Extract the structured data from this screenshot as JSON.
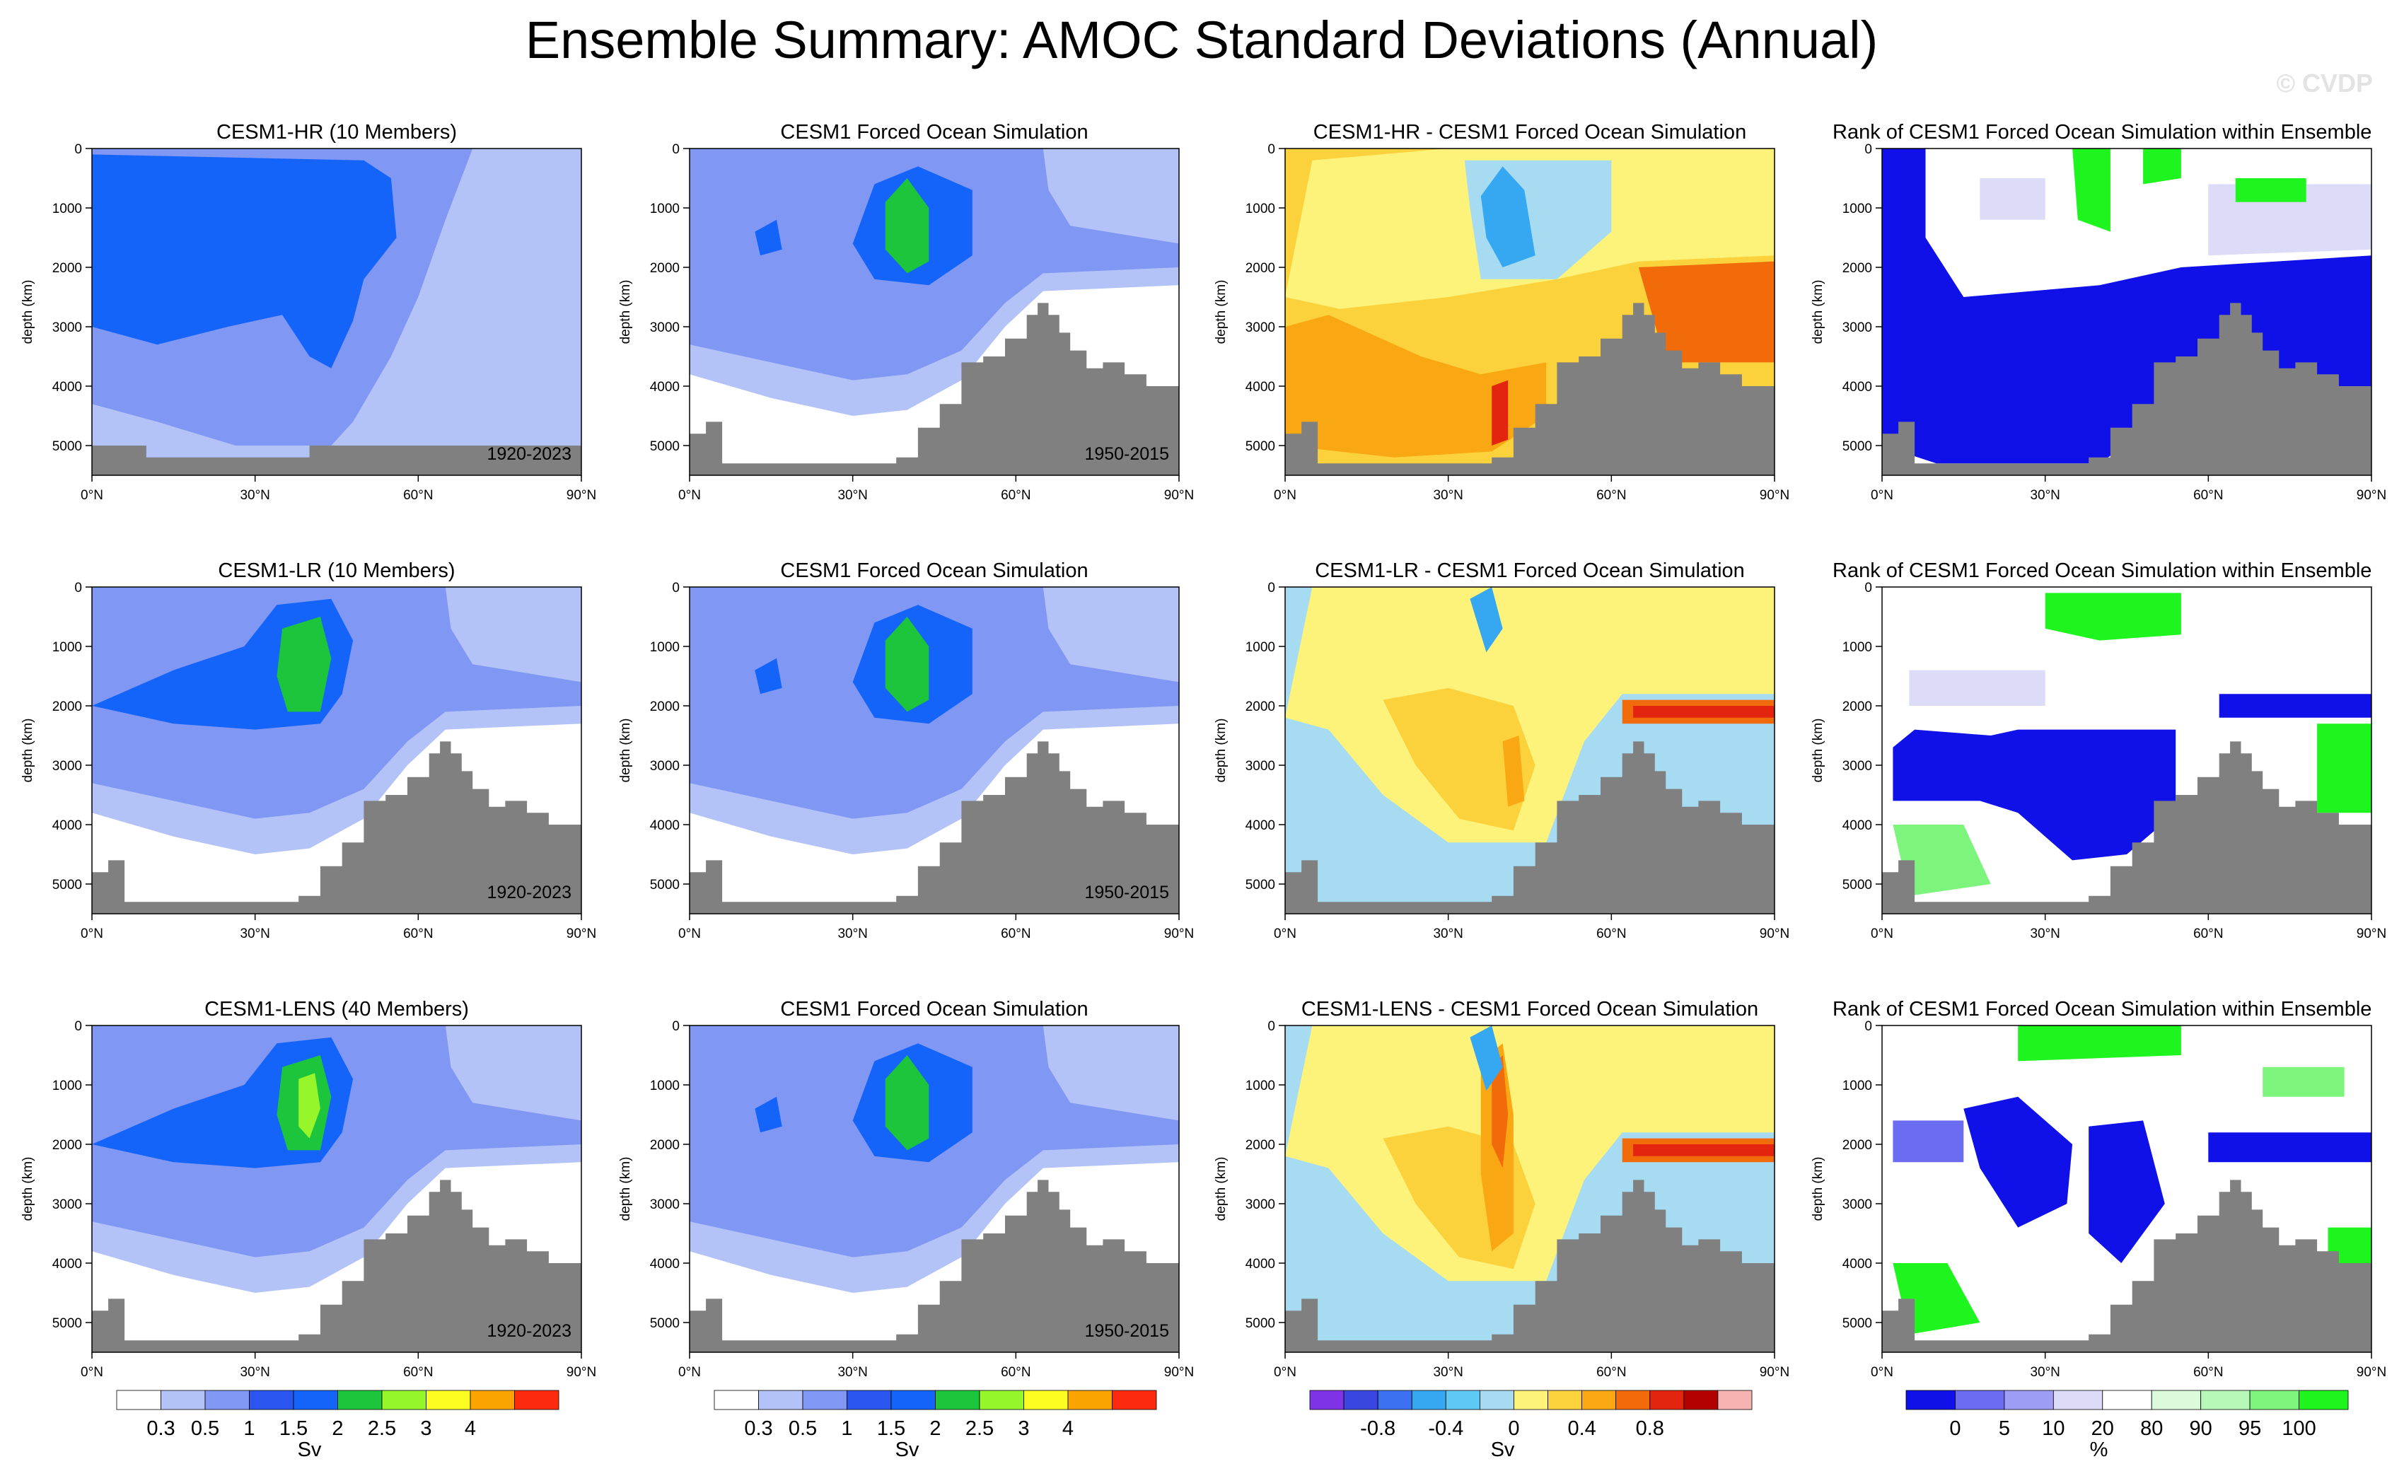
{
  "figure": {
    "title": "Ensemble Summary: AMOC Standard Deviations (Annual)",
    "watermark": "© CVDP"
  },
  "colors": {
    "sv_scale": [
      "#ffffff",
      "#b3c3f7",
      "#8097f4",
      "#2b55ef",
      "#1464fa",
      "#1cc53c",
      "#96f52b",
      "#fdfd21",
      "#fba300",
      "#fd2b0d"
    ],
    "diff_scale": [
      "#8033e6",
      "#3a46e0",
      "#3c71f2",
      "#36a8f2",
      "#5ec9f5",
      "#a6dbf2",
      "#fdf37b",
      "#fbd23c",
      "#f9a814",
      "#f26b0a",
      "#e3250f",
      "#b30000",
      "#f7b2b2"
    ],
    "rank_scale": [
      "#1010e8",
      "#6c6cf2",
      "#9d9df5",
      "#dcdcf8",
      "#ffffff",
      "#dbfbdb",
      "#b7f7b7",
      "#7df57d",
      "#1ef51e"
    ],
    "topography": "#808080"
  },
  "chart_data": [
    {
      "type": "contour",
      "row": 0,
      "col": 0,
      "title": "CESM1-HR (10 Members)",
      "period": "1920-2023",
      "panel": "ensemble_sd"
    },
    {
      "type": "contour",
      "row": 0,
      "col": 1,
      "title": "CESM1 Forced Ocean Simulation",
      "period": "1950-2015",
      "panel": "obs_sd"
    },
    {
      "type": "contour",
      "row": 0,
      "col": 2,
      "title": "CESM1-HR - CESM1 Forced Ocean Simulation",
      "period": "",
      "panel": "difference"
    },
    {
      "type": "contour",
      "row": 0,
      "col": 3,
      "title": "Rank of CESM1 Forced Ocean Simulation within Ensemble",
      "period": "",
      "panel": "rank"
    },
    {
      "type": "contour",
      "row": 1,
      "col": 0,
      "title": "CESM1-LR (10 Members)",
      "period": "1920-2023",
      "panel": "ensemble_sd"
    },
    {
      "type": "contour",
      "row": 1,
      "col": 1,
      "title": "CESM1 Forced Ocean Simulation",
      "period": "1950-2015",
      "panel": "obs_sd"
    },
    {
      "type": "contour",
      "row": 1,
      "col": 2,
      "title": "CESM1-LR - CESM1 Forced Ocean Simulation",
      "period": "",
      "panel": "difference"
    },
    {
      "type": "contour",
      "row": 1,
      "col": 3,
      "title": "Rank of CESM1 Forced Ocean Simulation within Ensemble",
      "period": "",
      "panel": "rank"
    },
    {
      "type": "contour",
      "row": 2,
      "col": 0,
      "title": "CESM1-LENS (40 Members)",
      "period": "1920-2023",
      "panel": "ensemble_sd"
    },
    {
      "type": "contour",
      "row": 2,
      "col": 1,
      "title": "CESM1 Forced Ocean Simulation",
      "period": "1950-2015",
      "panel": "obs_sd"
    },
    {
      "type": "contour",
      "row": 2,
      "col": 2,
      "title": "CESM1-LENS - CESM1 Forced Ocean Simulation",
      "period": "",
      "panel": "difference"
    },
    {
      "type": "contour",
      "row": 2,
      "col": 3,
      "title": "Rank of CESM1 Forced Ocean Simulation within Ensemble",
      "period": "",
      "panel": "rank"
    }
  ],
  "axes": {
    "xlabels": [
      "0°N",
      "30°N",
      "60°N",
      "90°N"
    ],
    "xlim": [
      0,
      90
    ],
    "ylabels": [
      "0",
      "1000",
      "2000",
      "3000",
      "4000",
      "5000"
    ],
    "ylim": [
      0,
      5500
    ],
    "ylabel": "depth (km)"
  },
  "colorbars": [
    {
      "unit": "Sv",
      "labels": [
        "0.3",
        "0.5",
        "1",
        "1.5",
        "2",
        "2.5",
        "3",
        "4"
      ]
    },
    {
      "unit": "Sv",
      "labels": [
        "0.3",
        "0.5",
        "1",
        "1.5",
        "2",
        "2.5",
        "3",
        "4"
      ]
    },
    {
      "unit": "Sv",
      "labels": [
        "-0.8",
        "-0.4",
        "0",
        "0.4",
        "0.8"
      ]
    },
    {
      "unit": "%",
      "labels": [
        "0",
        "5",
        "10",
        "20",
        "80",
        "90",
        "95",
        "100"
      ]
    }
  ]
}
